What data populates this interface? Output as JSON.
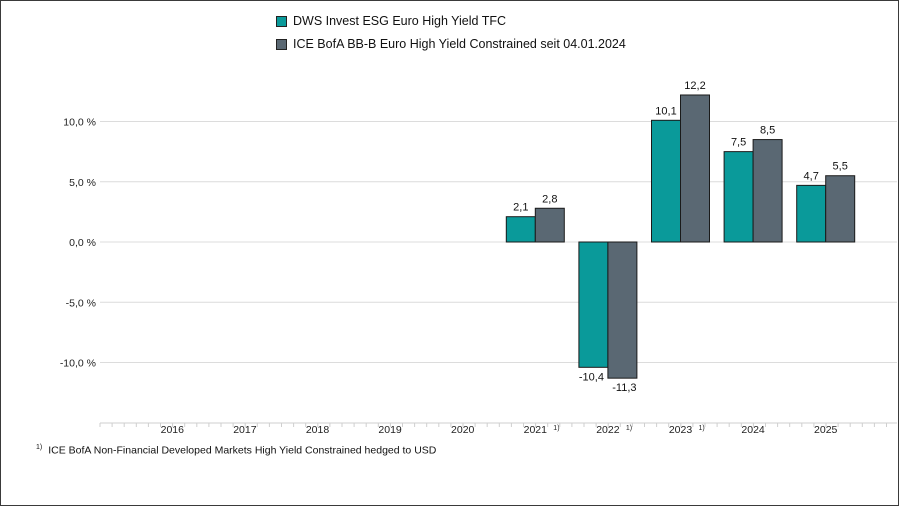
{
  "legend": [
    {
      "name": "DWS Invest ESG Euro High Yield TFC",
      "color": "#0a9a9a"
    },
    {
      "name": "ICE BofA BB-B Euro High Yield Constrained seit 04.01.2024",
      "color": "#5a6873"
    }
  ],
  "footnote": {
    "marker": "1)",
    "text": "ICE BofA Non-Financial Developed Markets High Yield Constrained hedged to USD"
  },
  "chart_data": {
    "type": "bar",
    "title": "",
    "xlabel": "",
    "ylabel": "",
    "ylim": [
      -14.2,
      14.0
    ],
    "grid": true,
    "legend_position": "top",
    "yticks": [
      {
        "value": 10,
        "label": "10,0 %"
      },
      {
        "value": 5,
        "label": "5,0 %"
      },
      {
        "value": 0,
        "label": "0,0 %"
      },
      {
        "value": -5,
        "label": "-5,0 %"
      },
      {
        "value": -10,
        "label": "-10,0 %"
      }
    ],
    "categories": [
      "2016",
      "2017",
      "2018",
      "2019",
      "2020",
      "2021",
      "2022",
      "2023",
      "2024",
      "2025"
    ],
    "category_notes": [
      "",
      "",
      "",
      "",
      "",
      "1)",
      "1)",
      "1)",
      "",
      ""
    ],
    "series": [
      {
        "name": "DWS Invest ESG Euro High Yield TFC",
        "color": "#0a9a9a",
        "values": [
          null,
          null,
          null,
          null,
          null,
          2.1,
          -10.4,
          10.1,
          7.5,
          4.7
        ],
        "labels": [
          "",
          "",
          "",
          "",
          "",
          "2,1",
          "-10,4",
          "10,1",
          "7,5",
          "4,7"
        ]
      },
      {
        "name": "ICE BofA BB-B Euro High Yield Constrained seit 04.01.2024",
        "color": "#5a6873",
        "values": [
          null,
          null,
          null,
          null,
          null,
          2.8,
          -11.3,
          12.2,
          8.5,
          5.5
        ],
        "labels": [
          "",
          "",
          "",
          "",
          "",
          "2,8",
          "-11,3",
          "12,2",
          "8,5",
          "5,5"
        ]
      }
    ]
  }
}
